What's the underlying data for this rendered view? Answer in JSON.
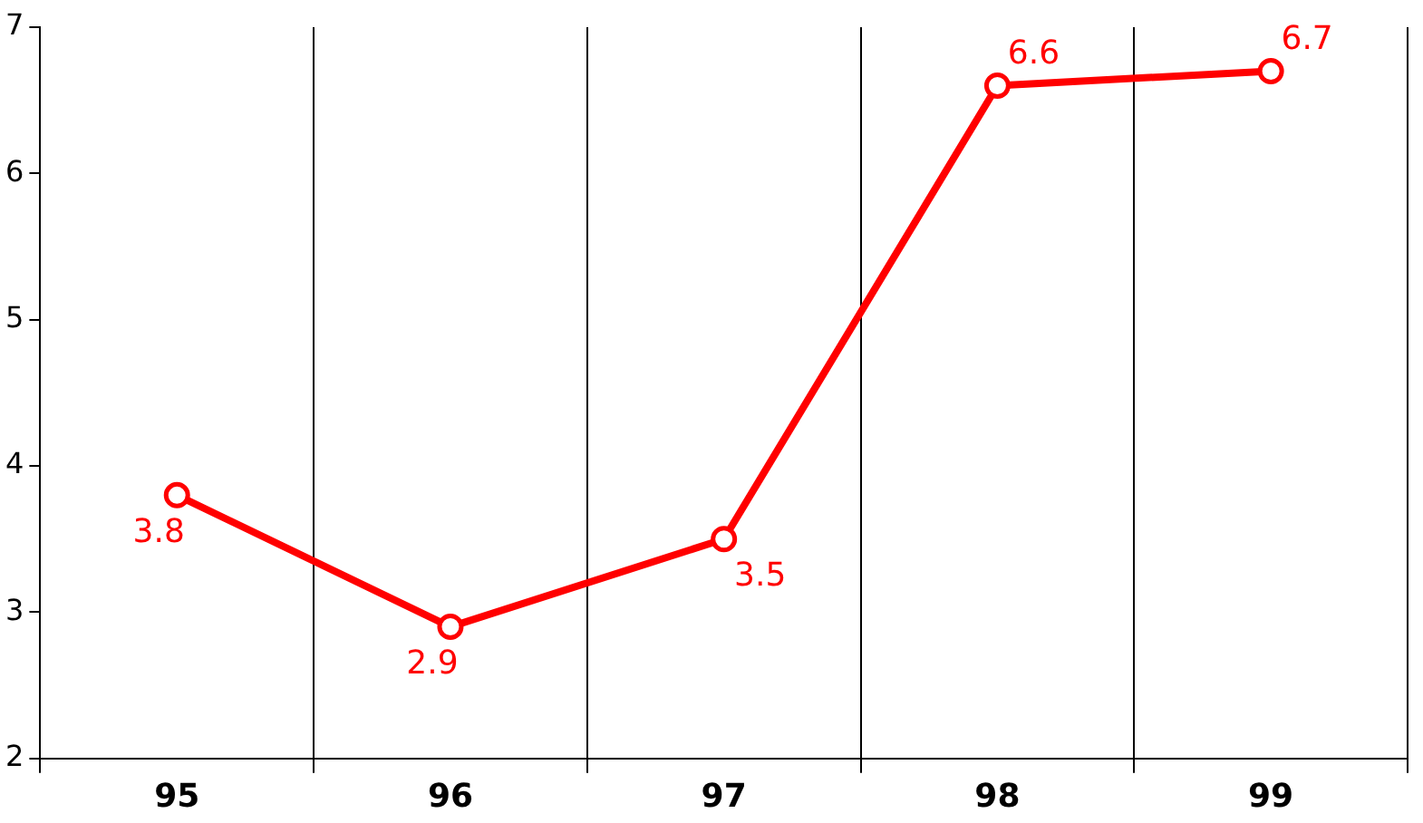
{
  "chart_data": {
    "type": "line",
    "categories": [
      "95",
      "96",
      "97",
      "98",
      "99"
    ],
    "series": [
      {
        "color": "#ff0000",
        "values": [
          3.8,
          2.9,
          3.5,
          6.6,
          6.7
        ]
      }
    ],
    "ylim": [
      2,
      7
    ],
    "yticks": [
      2,
      3,
      4,
      5,
      6,
      7
    ],
    "grid": "x",
    "legend": false,
    "marker": "circle",
    "line_style": "solid",
    "data_labels": true
  }
}
